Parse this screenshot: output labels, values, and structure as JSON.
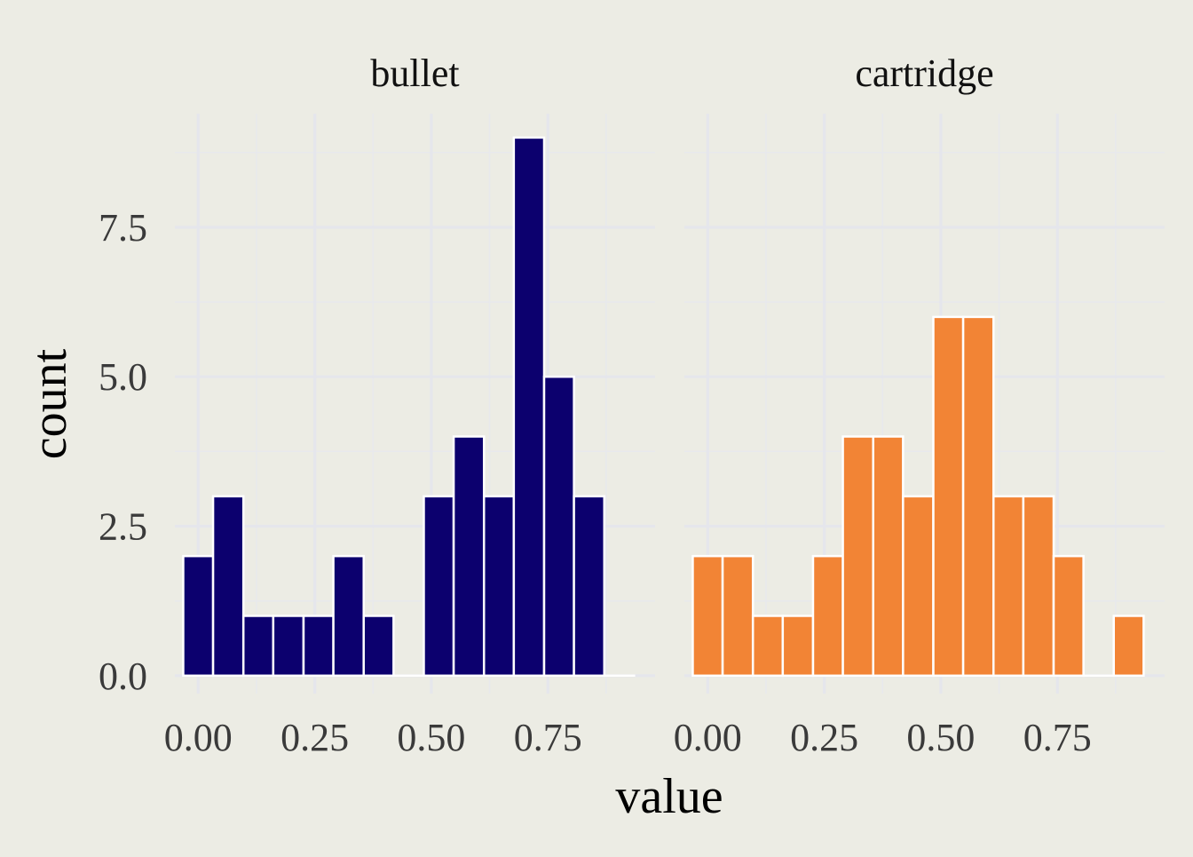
{
  "chart_data": {
    "type": "bar",
    "subtype": "faceted-histogram",
    "xlabel": "value",
    "ylabel": "count",
    "xlim": [
      -0.05,
      0.98
    ],
    "ylim": [
      -0.3,
      9.4
    ],
    "bin_width": 0.0645,
    "x_ticks": [
      0.0,
      0.25,
      0.5,
      0.75
    ],
    "x_tick_labels": [
      "0.00",
      "0.25",
      "0.50",
      "0.75"
    ],
    "y_ticks": [
      0.0,
      2.5,
      5.0,
      7.5
    ],
    "y_tick_labels": [
      "0.0",
      "2.5",
      "5.0",
      "7.5"
    ],
    "grid": true,
    "legend": "none",
    "bar_outline_color": "#FFFFFF",
    "panels": [
      {
        "name": "bullet",
        "color": "#0C006E",
        "bins": [
          {
            "x0": -0.032,
            "x1": 0.032,
            "count": 2
          },
          {
            "x0": 0.032,
            "x1": 0.097,
            "count": 3
          },
          {
            "x0": 0.097,
            "x1": 0.161,
            "count": 1
          },
          {
            "x0": 0.161,
            "x1": 0.226,
            "count": 1
          },
          {
            "x0": 0.226,
            "x1": 0.29,
            "count": 1
          },
          {
            "x0": 0.29,
            "x1": 0.355,
            "count": 2
          },
          {
            "x0": 0.355,
            "x1": 0.419,
            "count": 1
          },
          {
            "x0": 0.419,
            "x1": 0.484,
            "count": 0
          },
          {
            "x0": 0.484,
            "x1": 0.548,
            "count": 3
          },
          {
            "x0": 0.548,
            "x1": 0.613,
            "count": 4
          },
          {
            "x0": 0.613,
            "x1": 0.677,
            "count": 3
          },
          {
            "x0": 0.677,
            "x1": 0.742,
            "count": 9
          },
          {
            "x0": 0.742,
            "x1": 0.806,
            "count": 5
          },
          {
            "x0": 0.806,
            "x1": 0.871,
            "count": 3
          },
          {
            "x0": 0.871,
            "x1": 0.935,
            "count": 0
          }
        ]
      },
      {
        "name": "cartridge",
        "color": "#F28435",
        "bins": [
          {
            "x0": -0.032,
            "x1": 0.032,
            "count": 2
          },
          {
            "x0": 0.032,
            "x1": 0.097,
            "count": 2
          },
          {
            "x0": 0.097,
            "x1": 0.161,
            "count": 1
          },
          {
            "x0": 0.161,
            "x1": 0.226,
            "count": 1
          },
          {
            "x0": 0.226,
            "x1": 0.29,
            "count": 2
          },
          {
            "x0": 0.29,
            "x1": 0.355,
            "count": 4
          },
          {
            "x0": 0.355,
            "x1": 0.419,
            "count": 4
          },
          {
            "x0": 0.419,
            "x1": 0.484,
            "count": 3
          },
          {
            "x0": 0.484,
            "x1": 0.548,
            "count": 6
          },
          {
            "x0": 0.548,
            "x1": 0.613,
            "count": 6
          },
          {
            "x0": 0.613,
            "x1": 0.677,
            "count": 3
          },
          {
            "x0": 0.677,
            "x1": 0.742,
            "count": 3
          },
          {
            "x0": 0.742,
            "x1": 0.806,
            "count": 2
          },
          {
            "x0": 0.806,
            "x1": 0.871,
            "count": 0
          },
          {
            "x0": 0.871,
            "x1": 0.935,
            "count": 1
          }
        ]
      }
    ]
  }
}
